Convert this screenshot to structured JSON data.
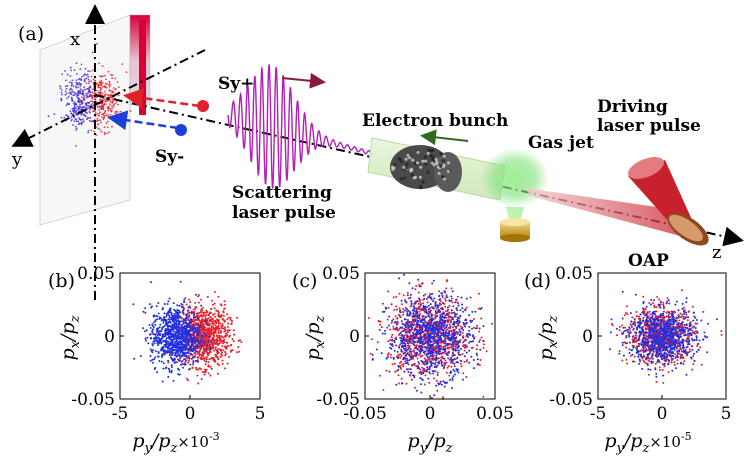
{
  "figure": {
    "panel_a": {
      "label": "(a)",
      "axes": {
        "x": "x",
        "y": "y",
        "z": "z"
      },
      "labels": {
        "sy_plus": "Sy+",
        "sy_minus": "Sy-",
        "scattering_line1": "Scattering",
        "scattering_line2": "laser pulse",
        "electron_bunch": "Electron bunch",
        "gas_jet": "Gas jet",
        "driving_line1": "Driving",
        "driving_line2": "laser pulse",
        "oap": "OAP"
      },
      "colors": {
        "spin_up": "#e0202a",
        "spin_down": "#1e3fd8",
        "scattering_wave": "#b21fb8",
        "propagation_arrow": "#8b1a3a",
        "bunch_arrow": "#2e6b1f",
        "driving_laser": "#c8202c",
        "gas_jet_glow": "#7fe07a",
        "nozzle": "#c89a1a"
      }
    },
    "panels": [
      {
        "label": "(b)",
        "xlabel_main": "p",
        "xlabel_sub_y": "y",
        "xlabel_sub_z": "z",
        "xlabel_suffix": "×10",
        "xlabel_exp": "-3",
        "ylabel_main": "p",
        "ylabel_sub_x": "x",
        "ylabel_sub_z": "z",
        "xticks": [
          "-5",
          "0",
          "5"
        ],
        "yticks": [
          "0.05",
          "0",
          "-0.05"
        ]
      },
      {
        "label": "(c)",
        "xlabel_main": "p",
        "xlabel_sub_y": "y",
        "xlabel_sub_z": "z",
        "xlabel_suffix": "",
        "xlabel_exp": "",
        "ylabel_main": "p",
        "ylabel_sub_x": "x",
        "ylabel_sub_z": "z",
        "xticks": [
          "-0.05",
          "0",
          "0.05"
        ],
        "yticks": [
          "0.05",
          "0",
          "-0.05"
        ]
      },
      {
        "label": "(d)",
        "xlabel_main": "p",
        "xlabel_sub_y": "y",
        "xlabel_sub_z": "z",
        "xlabel_suffix": "×10",
        "xlabel_exp": "-5",
        "ylabel_main": "p",
        "ylabel_sub_x": "x",
        "ylabel_sub_z": "z",
        "xticks": [
          "-5",
          "0",
          "5"
        ],
        "yticks": [
          "0.05",
          "0",
          "-0.05"
        ]
      }
    ]
  },
  "chart_data": [
    {
      "type": "scatter",
      "title": "(b)",
      "xlabel": "p_y/p_z ×10^-3",
      "ylabel": "p_x/p_z",
      "xlim": [
        -5,
        5
      ],
      "ylim": [
        -0.05,
        0.05
      ],
      "series": [
        {
          "name": "Sy+ (red)",
          "color": "#e8202a",
          "center_x": 1.0,
          "spread_x": 0.9,
          "spread_y": 0.012,
          "points": 900
        },
        {
          "name": "Sy- (blue)",
          "color": "#2030e0",
          "center_x": -1.0,
          "spread_x": 0.9,
          "spread_y": 0.012,
          "points": 900
        }
      ]
    },
    {
      "type": "scatter",
      "title": "(c)",
      "xlabel": "p_y/p_z",
      "ylabel": "p_x/p_z",
      "xlim": [
        -0.05,
        0.05
      ],
      "ylim": [
        -0.05,
        0.05
      ],
      "series": [
        {
          "name": "Sy+ (red)",
          "color": "#e8202a",
          "center_x": 0.0,
          "spread_x": 0.016,
          "spread_y": 0.016,
          "points": 900
        },
        {
          "name": "Sy- (blue)",
          "color": "#2030e0",
          "center_x": 0.0,
          "spread_x": 0.016,
          "spread_y": 0.016,
          "points": 900
        }
      ]
    },
    {
      "type": "scatter",
      "title": "(d)",
      "xlabel": "p_y/p_z ×10^-5",
      "ylabel": "p_x/p_z",
      "xlim": [
        -5,
        5
      ],
      "ylim": [
        -0.05,
        0.05
      ],
      "series": [
        {
          "name": "Sy+ (red)",
          "color": "#e8202a",
          "center_x": 0.0,
          "spread_x": 1.3,
          "spread_y": 0.011,
          "points": 800
        },
        {
          "name": "Sy- (blue)",
          "color": "#2030e0",
          "center_x": 0.0,
          "spread_x": 1.3,
          "spread_y": 0.011,
          "points": 800
        }
      ]
    }
  ]
}
